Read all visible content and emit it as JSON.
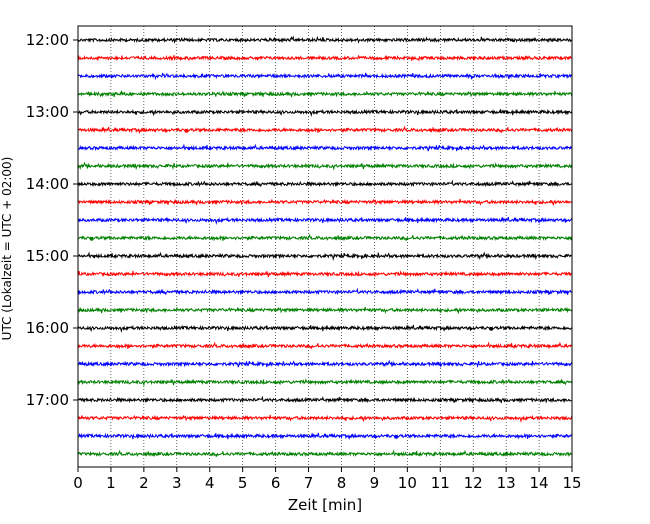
{
  "chart_data": {
    "type": "line",
    "description_kind": "helicorder",
    "xlabel": "Zeit  [min]",
    "ylabel": "UTC (Lokalzeit = UTC + 02:00)",
    "xlim": [
      0,
      15
    ],
    "x_ticks": [
      "0",
      "1",
      "2",
      "3",
      "4",
      "5",
      "6",
      "7",
      "8",
      "9",
      "10",
      "11",
      "12",
      "13",
      "14",
      "15"
    ],
    "y_ticks": [
      "12:00",
      "13:00",
      "14:00",
      "15:00",
      "16:00",
      "17:00"
    ],
    "grid": {
      "vertical": true,
      "style": "dotted"
    },
    "trace_interval_minutes": 15,
    "traces_per_hour": 4,
    "start_time": "12:00",
    "trace_count": 24,
    "trace_colors": [
      "#000000",
      "#ff0000",
      "#0000ff",
      "#008000"
    ]
  }
}
